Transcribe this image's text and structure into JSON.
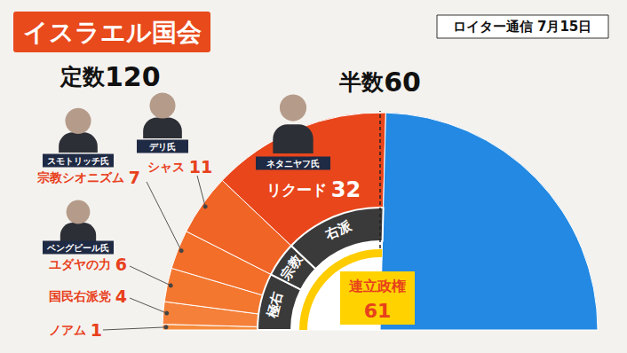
{
  "title": "イスラエル国会",
  "source": "ロイター通信 7月15日",
  "chart_data": {
    "type": "pie",
    "total_label": "定数",
    "total": 120,
    "majority_label": "半数",
    "majority": 60,
    "categories": [
      "ノアム",
      "国民右派党",
      "ユダヤの力",
      "宗教シオニズム",
      "シャス",
      "リクード",
      null
    ],
    "values": [
      1,
      4,
      6,
      7,
      11,
      32,
      59
    ],
    "colors": [
      "#f58a3a",
      "#f5803a",
      "#f3772f",
      "#f26e29",
      "#f06426",
      "#e9461c",
      "#2389e2"
    ],
    "data_labels": true,
    "leaders": [
      null,
      null,
      "ベングビール氏",
      "スモトリッチ氏",
      "デリ氏",
      "ネタニヤフ氏",
      null
    ],
    "blocs": [
      {
        "label": "極右",
        "members": [
          "ノアム",
          "国民右派党",
          "ユダヤの力",
          "宗教シオニズム"
        ]
      },
      {
        "label": "宗教",
        "members": [
          "シャス"
        ]
      },
      {
        "label": "右派",
        "members": [
          "リクード"
        ]
      }
    ],
    "coalition": {
      "label": "連立政権",
      "value": 61
    }
  }
}
